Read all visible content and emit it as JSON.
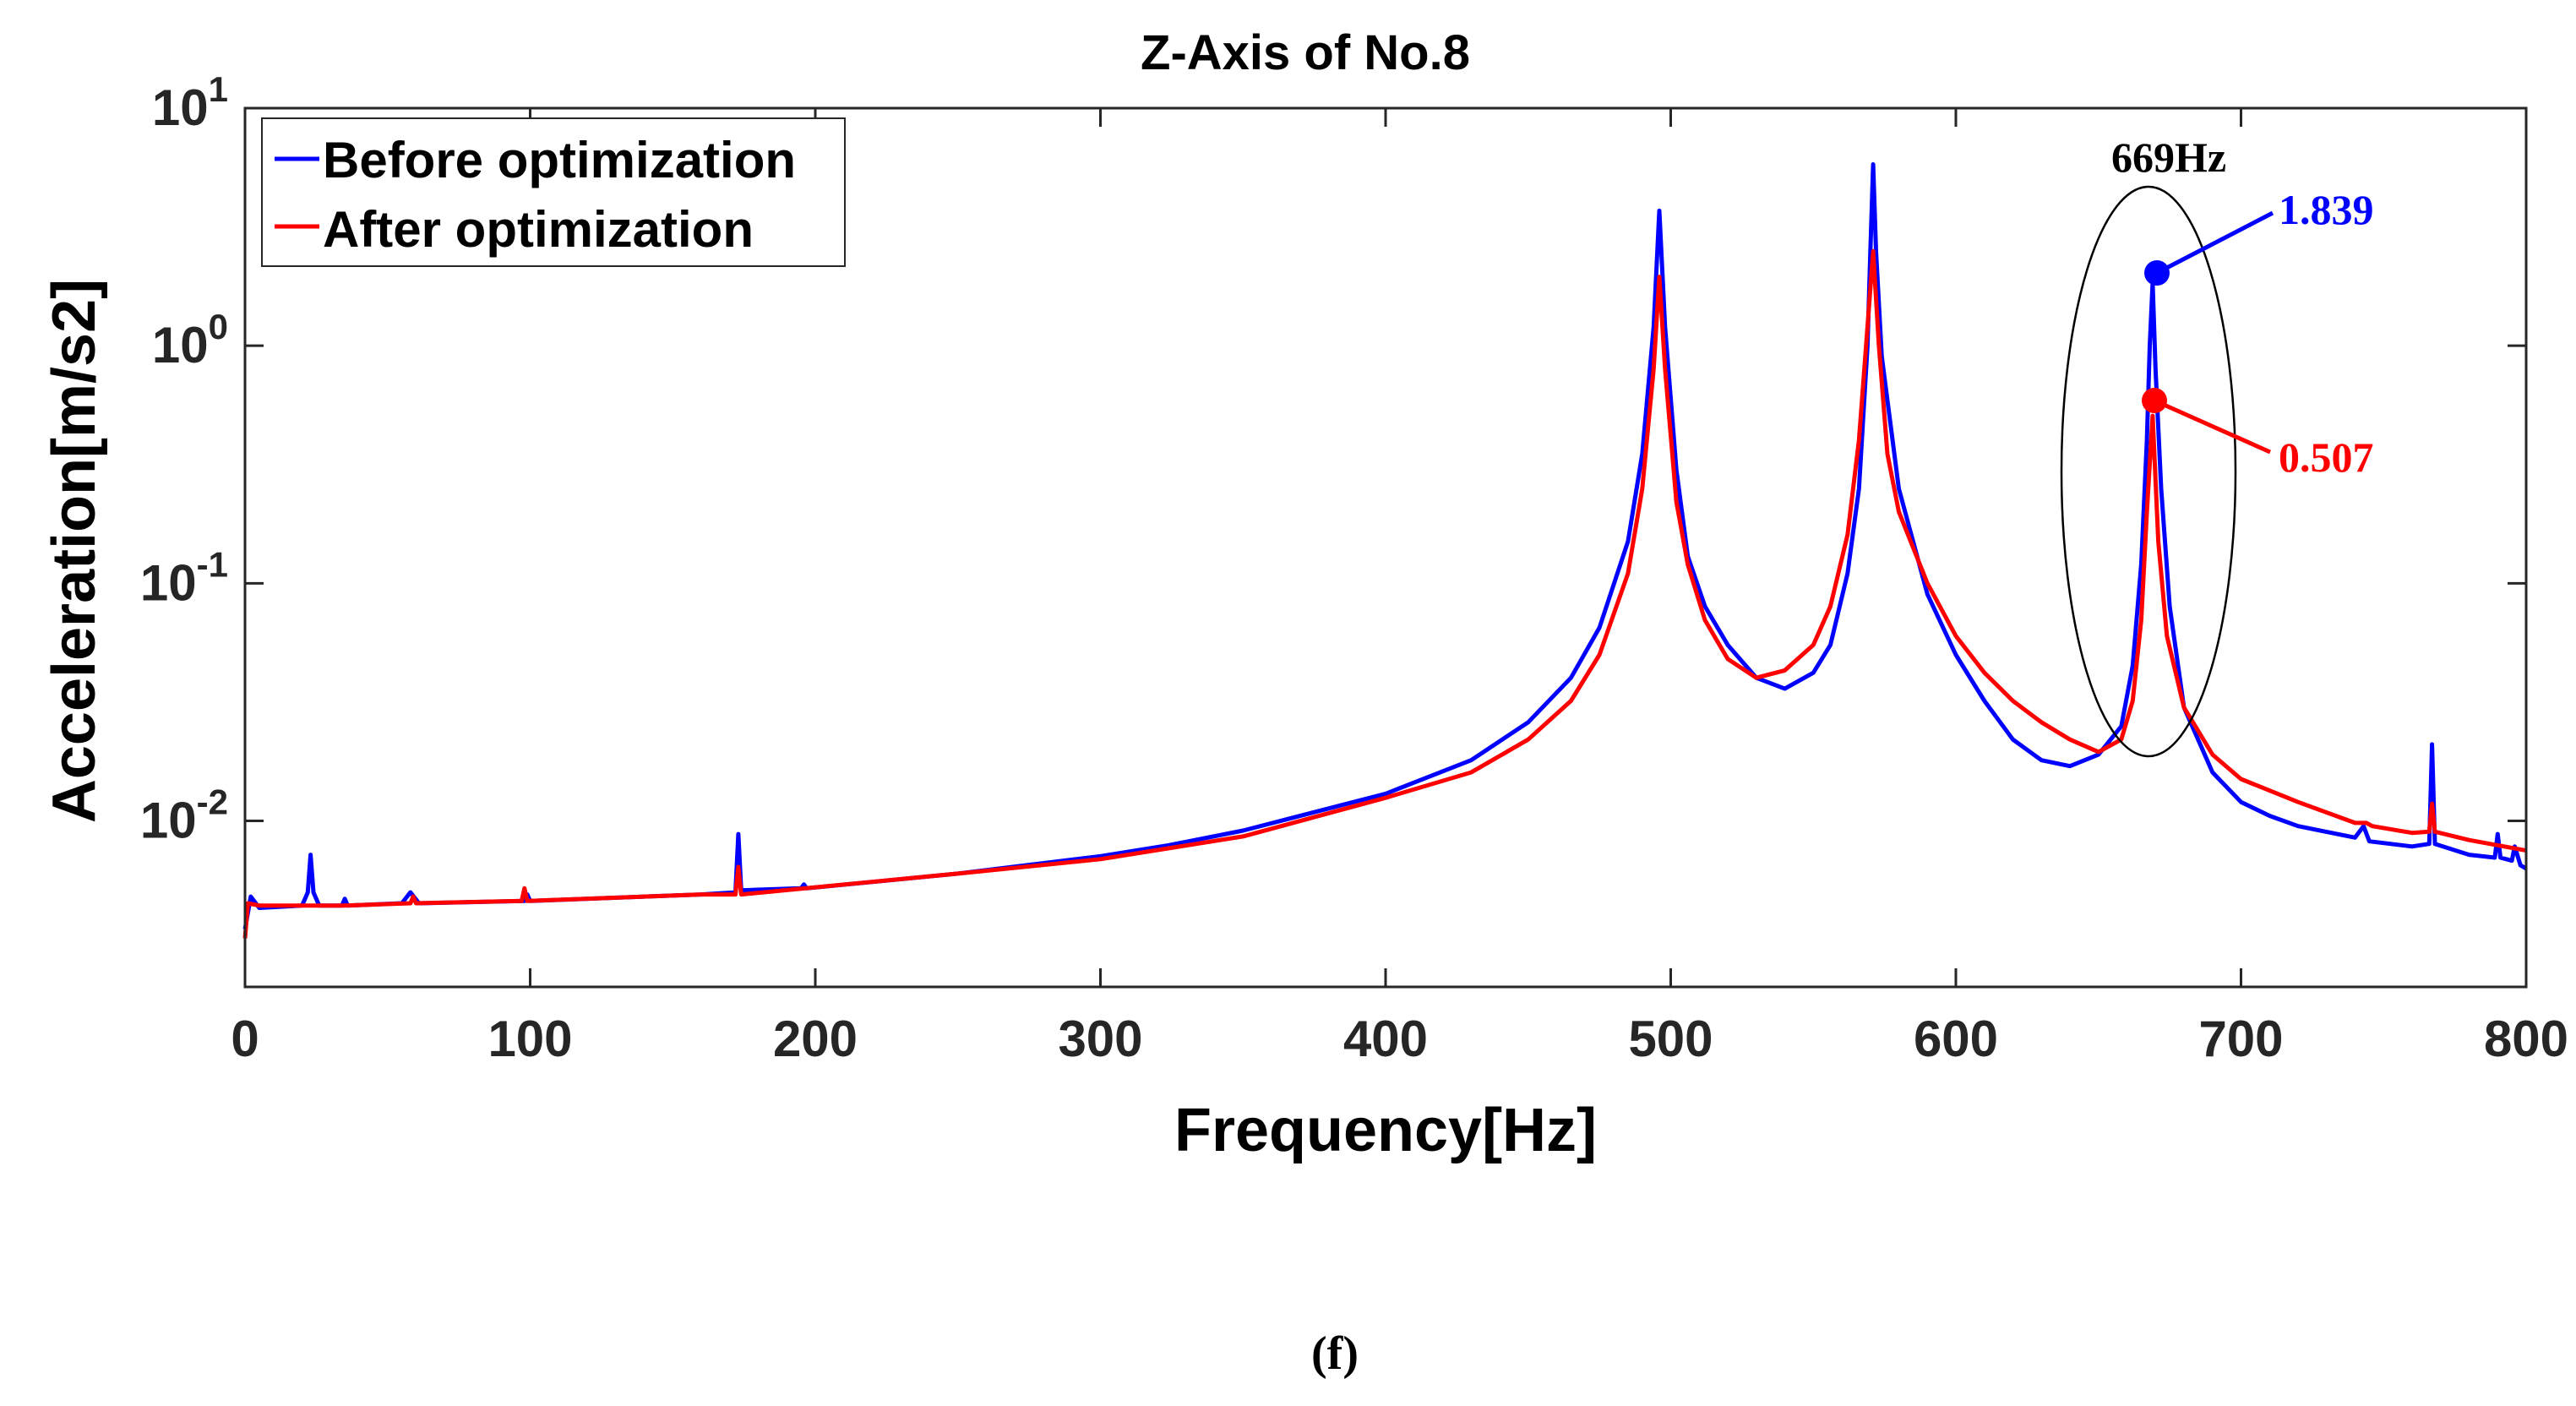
{
  "chart_data": {
    "type": "line",
    "title": "Z-Axis of No.8",
    "xlabel": "Frequency[Hz]",
    "ylabel": "Acceleration[m/s2]",
    "xlim": [
      0,
      800
    ],
    "ylim": [
      0.002,
      10
    ],
    "yscale": "log",
    "grid": false,
    "legend_position": "top-left",
    "x_ticks": [
      "0",
      "100",
      "200",
      "300",
      "400",
      "500",
      "600",
      "700",
      "800"
    ],
    "x_tick_values": [
      0,
      100,
      200,
      300,
      400,
      500,
      600,
      700,
      800
    ],
    "y_ticks": [
      {
        "base": "10",
        "exp": "1",
        "value": 10
      },
      {
        "base": "10",
        "exp": "0",
        "value": 1
      },
      {
        "base": "10",
        "exp": "-1",
        "value": 0.1
      },
      {
        "base": "10",
        "exp": "-2",
        "value": 0.01
      }
    ],
    "series": [
      {
        "name": "Before optimization",
        "color": "#0000ff",
        "points": [
          [
            0,
            0.0035
          ],
          [
            2,
            0.0048
          ],
          [
            5,
            0.0043
          ],
          [
            20,
            0.0044
          ],
          [
            22,
            0.005
          ],
          [
            23,
            0.0072
          ],
          [
            24,
            0.005
          ],
          [
            26,
            0.0044
          ],
          [
            34,
            0.0044
          ],
          [
            35,
            0.0047
          ],
          [
            36,
            0.0044
          ],
          [
            55,
            0.0045
          ],
          [
            58,
            0.005
          ],
          [
            61,
            0.0045
          ],
          [
            98,
            0.0046
          ],
          [
            99,
            0.0049
          ],
          [
            100,
            0.0046
          ],
          [
            160,
            0.0049
          ],
          [
            172,
            0.005
          ],
          [
            173,
            0.0088
          ],
          [
            174,
            0.0051
          ],
          [
            195,
            0.0052
          ],
          [
            196,
            0.0054
          ],
          [
            197,
            0.0052
          ],
          [
            250,
            0.006
          ],
          [
            300,
            0.0071
          ],
          [
            324,
            0.0079
          ],
          [
            350,
            0.0091
          ],
          [
            400,
            0.013
          ],
          [
            430,
            0.018
          ],
          [
            450,
            0.026
          ],
          [
            465,
            0.04
          ],
          [
            475,
            0.065
          ],
          [
            485,
            0.15
          ],
          [
            490,
            0.35
          ],
          [
            494,
            1.2
          ],
          [
            496,
            3.7
          ],
          [
            498,
            1.2
          ],
          [
            502,
            0.3
          ],
          [
            506,
            0.13
          ],
          [
            512,
            0.08
          ],
          [
            520,
            0.055
          ],
          [
            530,
            0.04
          ],
          [
            540,
            0.036
          ],
          [
            550,
            0.042
          ],
          [
            556,
            0.055
          ],
          [
            562,
            0.11
          ],
          [
            566,
            0.25
          ],
          [
            569,
            1.0
          ],
          [
            570,
            2.5
          ],
          [
            571,
            5.8
          ],
          [
            572,
            2.5
          ],
          [
            574,
            0.9
          ],
          [
            580,
            0.25
          ],
          [
            590,
            0.09
          ],
          [
            600,
            0.05
          ],
          [
            610,
            0.032
          ],
          [
            620,
            0.022
          ],
          [
            630,
            0.018
          ],
          [
            640,
            0.017
          ],
          [
            650,
            0.019
          ],
          [
            658,
            0.025
          ],
          [
            662,
            0.045
          ],
          [
            665,
            0.12
          ],
          [
            667,
            0.4
          ],
          [
            668,
            1.0
          ],
          [
            669,
            1.839
          ],
          [
            670,
            0.8
          ],
          [
            672,
            0.25
          ],
          [
            675,
            0.08
          ],
          [
            680,
            0.03
          ],
          [
            690,
            0.016
          ],
          [
            700,
            0.012
          ],
          [
            710,
            0.0105
          ],
          [
            720,
            0.0095
          ],
          [
            740,
            0.0085
          ],
          [
            743,
            0.0095
          ],
          [
            745,
            0.0082
          ],
          [
            760,
            0.0078
          ],
          [
            766,
            0.008
          ],
          [
            767,
            0.021
          ],
          [
            768,
            0.008
          ],
          [
            780,
            0.0072
          ],
          [
            789,
            0.007
          ],
          [
            790,
            0.0088
          ],
          [
            791,
            0.007
          ],
          [
            795,
            0.0068
          ],
          [
            796,
            0.0078
          ],
          [
            798,
            0.0065
          ],
          [
            800,
            0.0063
          ]
        ]
      },
      {
        "name": "After optimization",
        "color": "#ff0000",
        "points": [
          [
            0,
            0.0032
          ],
          [
            1,
            0.0045
          ],
          [
            5,
            0.0044
          ],
          [
            35,
            0.0044
          ],
          [
            58,
            0.0045
          ],
          [
            59,
            0.0048
          ],
          [
            60,
            0.0045
          ],
          [
            97,
            0.0046
          ],
          [
            98,
            0.0052
          ],
          [
            99,
            0.0046
          ],
          [
            160,
            0.0049
          ],
          [
            172,
            0.0049
          ],
          [
            173,
            0.0064
          ],
          [
            174,
            0.0049
          ],
          [
            250,
            0.006
          ],
          [
            300,
            0.0069
          ],
          [
            350,
            0.0086
          ],
          [
            400,
            0.0125
          ],
          [
            430,
            0.016
          ],
          [
            450,
            0.022
          ],
          [
            465,
            0.032
          ],
          [
            475,
            0.05
          ],
          [
            485,
            0.11
          ],
          [
            490,
            0.25
          ],
          [
            494,
            0.8
          ],
          [
            496,
            1.95
          ],
          [
            498,
            0.8
          ],
          [
            502,
            0.22
          ],
          [
            506,
            0.12
          ],
          [
            512,
            0.07
          ],
          [
            520,
            0.048
          ],
          [
            530,
            0.04
          ],
          [
            540,
            0.043
          ],
          [
            550,
            0.055
          ],
          [
            556,
            0.08
          ],
          [
            562,
            0.16
          ],
          [
            566,
            0.4
          ],
          [
            569,
            1.2
          ],
          [
            571,
            2.5
          ],
          [
            573,
            1.0
          ],
          [
            576,
            0.35
          ],
          [
            580,
            0.2
          ],
          [
            590,
            0.1
          ],
          [
            600,
            0.06
          ],
          [
            610,
            0.042
          ],
          [
            620,
            0.032
          ],
          [
            630,
            0.026
          ],
          [
            640,
            0.022
          ],
          [
            650,
            0.0195
          ],
          [
            658,
            0.022
          ],
          [
            662,
            0.032
          ],
          [
            665,
            0.07
          ],
          [
            667,
            0.2
          ],
          [
            669,
            0.507
          ],
          [
            671,
            0.15
          ],
          [
            674,
            0.06
          ],
          [
            680,
            0.03
          ],
          [
            690,
            0.019
          ],
          [
            700,
            0.015
          ],
          [
            720,
            0.012
          ],
          [
            740,
            0.0098
          ],
          [
            744,
            0.0098
          ],
          [
            746,
            0.0095
          ],
          [
            760,
            0.0089
          ],
          [
            766,
            0.009
          ],
          [
            767,
            0.0118
          ],
          [
            768,
            0.009
          ],
          [
            780,
            0.0083
          ],
          [
            800,
            0.0075
          ]
        ]
      }
    ],
    "annotations": [
      {
        "label": "669Hz",
        "x": 669
      },
      {
        "label": "1.839",
        "x": 669,
        "y": 1.839,
        "color": "#0000ff"
      },
      {
        "label": "0.507",
        "x": 669,
        "y": 0.507,
        "color": "#ff0000"
      }
    ],
    "caption": "(f)"
  }
}
